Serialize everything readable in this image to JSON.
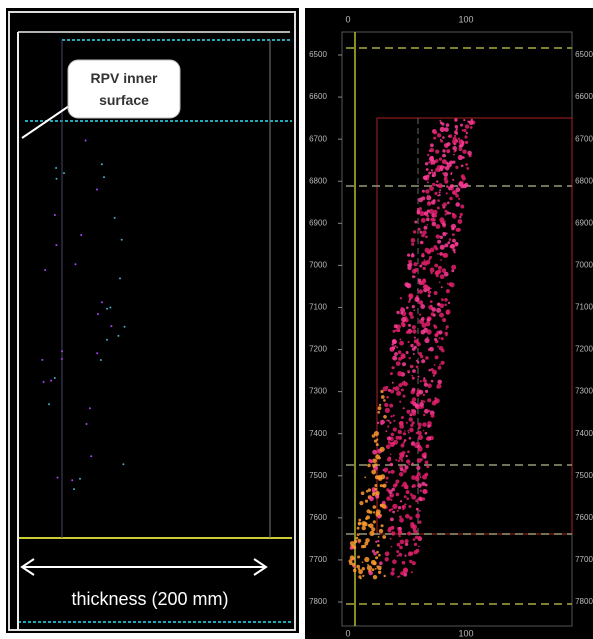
{
  "left_panel": {
    "callout": "RPV inner surface",
    "dimension_label": "thickness (200 mm)"
  },
  "right_panel": {
    "x_ticks": [
      "0",
      "100"
    ],
    "depth_ticks": [
      "6500",
      "6600",
      "6700",
      "6800",
      "6900",
      "7000",
      "7100",
      "7200",
      "7300",
      "7400",
      "7500",
      "7600",
      "7700",
      "7800"
    ]
  }
}
